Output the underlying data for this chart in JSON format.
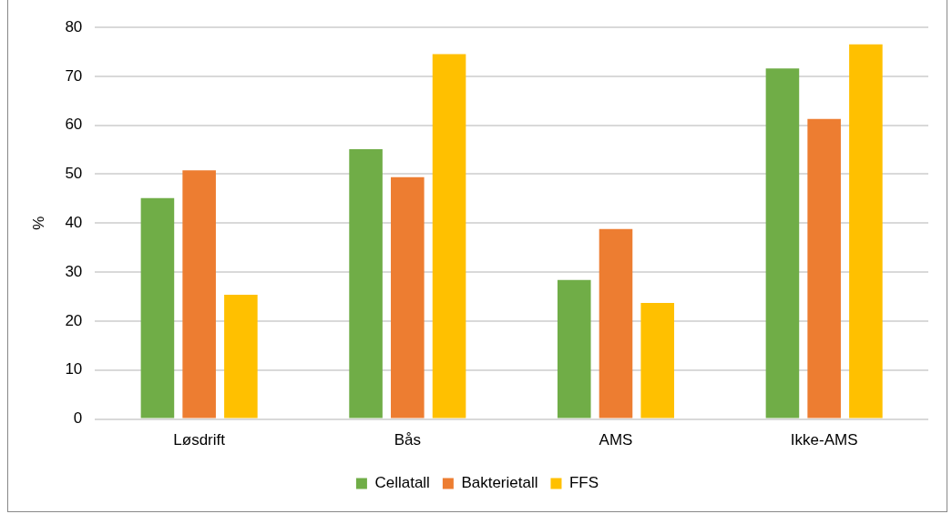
{
  "chart_data": {
    "type": "bar",
    "ylabel": "%",
    "categories": [
      "Løsdrift",
      "Bås",
      "AMS",
      "Ikke-AMS"
    ],
    "series": [
      {
        "name": "Cellatall",
        "color": "#70ad47",
        "values": [
          45.1,
          55.1,
          28.4,
          71.6
        ]
      },
      {
        "name": "Bakterietall",
        "color": "#ed7d31",
        "values": [
          50.8,
          49.4,
          38.8,
          61.3
        ]
      },
      {
        "name": "FFS",
        "color": "#ffc000",
        "values": [
          25.4,
          74.5,
          23.7,
          76.5
        ]
      }
    ],
    "ylim": [
      0,
      80
    ],
    "yticks": [
      0,
      10,
      20,
      30,
      40,
      50,
      60,
      70,
      80
    ],
    "grid": "y",
    "legend": "bottom"
  }
}
